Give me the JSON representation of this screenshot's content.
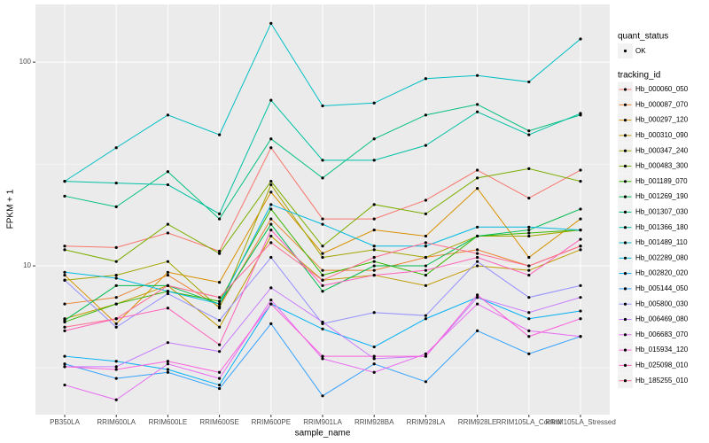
{
  "chart_data": {
    "type": "line",
    "x_label": "sample_name",
    "y_label": "FPKM + 1",
    "categories": [
      "PB350LA",
      "RRIM600LA",
      "RRIM600LE",
      "RRIM600SE",
      "RRIM600PE",
      "RRIM901LA",
      "RRIM928BA",
      "RRIM928LA",
      "RRIM928LE",
      "RRIM105LA_Control",
      "RRIM105LA_Stressed"
    ],
    "log_y": true,
    "ylim": [
      1.86,
      192
    ],
    "yticks": [
      10,
      100
    ],
    "grid": true,
    "point_color": "#000000",
    "point_legend": {
      "title": "quant_status",
      "label": "OK"
    },
    "legend_title": "tracking_id",
    "legend_position": "right",
    "series": [
      {
        "name": "Hb_000060_050",
        "color": "#F8766D",
        "values": [
          12.5,
          12.3,
          14.5,
          11.8,
          38,
          17,
          17,
          21,
          29.5,
          21.5,
          29.5
        ]
      },
      {
        "name": "Hb_000087_070",
        "color": "#EA8331",
        "values": [
          6.5,
          7,
          9,
          6.3,
          17,
          9.5,
          9.5,
          11,
          12,
          10,
          12.5
        ]
      },
      {
        "name": "Hb_000297_120",
        "color": "#D89000",
        "values": [
          9,
          5.2,
          9.3,
          8.3,
          23,
          11.5,
          15,
          14,
          24,
          11,
          17
        ]
      },
      {
        "name": "Hb_000310_090",
        "color": "#C09B00",
        "values": [
          5.5,
          6.5,
          8,
          5,
          14,
          8.5,
          9,
          8,
          10,
          9.5,
          12
        ]
      },
      {
        "name": "Hb_000347_240",
        "color": "#A3A500",
        "values": [
          8.5,
          9,
          10.5,
          6.2,
          25,
          11,
          12,
          11,
          14,
          14,
          15
        ]
      },
      {
        "name": "Hb_000483_300",
        "color": "#7CAE00",
        "values": [
          12,
          10.5,
          16,
          11.5,
          26,
          12.5,
          20,
          18,
          27,
          30,
          26
        ]
      },
      {
        "name": "Hb_001189_070",
        "color": "#39B600",
        "values": [
          5.3,
          6.5,
          7.5,
          6.7,
          19,
          9,
          10.5,
          9,
          14,
          14.5,
          15
        ]
      },
      {
        "name": "Hb_001269_190",
        "color": "#00BB4E",
        "values": [
          5.4,
          8,
          8,
          6.5,
          16,
          7.5,
          10,
          10,
          14,
          15,
          19
        ]
      },
      {
        "name": "Hb_001307_030",
        "color": "#00BF7D",
        "values": [
          22,
          19.5,
          29,
          17,
          42,
          27,
          42,
          55,
          62,
          46,
          55
        ]
      },
      {
        "name": "Hb_001366_180",
        "color": "#00C1A3",
        "values": [
          26,
          25.5,
          25,
          18,
          65,
          33,
          33,
          39,
          57,
          44,
          56
        ]
      },
      {
        "name": "Hb_001489_110",
        "color": "#00BFC4",
        "values": [
          26,
          38,
          55,
          44,
          155,
          61,
          63,
          83,
          86,
          80,
          130
        ]
      },
      {
        "name": "Hb_002289_080",
        "color": "#00BAE0",
        "values": [
          9.3,
          8.7,
          7.5,
          6.5,
          20,
          16,
          12.5,
          12.5,
          15.5,
          15.5,
          15
        ]
      },
      {
        "name": "Hb_002820_020",
        "color": "#00B0F6",
        "values": [
          3.6,
          3.4,
          3.1,
          2.6,
          6.5,
          4.9,
          4,
          5.5,
          7,
          5.5,
          6
        ]
      },
      {
        "name": "Hb_005144_050",
        "color": "#35A2FF",
        "values": [
          3.3,
          2.8,
          3,
          2.5,
          5.2,
          2.3,
          3.3,
          2.7,
          4.8,
          3.7,
          4.5
        ]
      },
      {
        "name": "Hb_005800_030",
        "color": "#9590FF",
        "values": [
          8.5,
          5,
          7.3,
          5.4,
          11,
          5.2,
          5.9,
          5.7,
          10.5,
          7,
          8
        ]
      },
      {
        "name": "Hb_006469_080",
        "color": "#C77CFF",
        "values": [
          3.2,
          3.2,
          4.2,
          3.8,
          7.8,
          5.3,
          3.5,
          3.6,
          7,
          5.9,
          7
        ]
      },
      {
        "name": "Hb_006683_070",
        "color": "#E76BF3",
        "values": [
          2.6,
          2.2,
          3.3,
          2.8,
          6.8,
          3.5,
          3,
          3.7,
          6.5,
          4.8,
          4.5
        ]
      },
      {
        "name": "Hb_015934_120",
        "color": "#FA62DB",
        "values": [
          3.2,
          3.1,
          3.4,
          3,
          6.5,
          3.6,
          3.6,
          3.6,
          7.2,
          4.5,
          5.5
        ]
      },
      {
        "name": "Hb_025098_010",
        "color": "#FF62BC",
        "values": [
          4.8,
          5.5,
          6.2,
          4.1,
          15,
          8,
          9,
          9.5,
          11,
          9,
          13.5
        ]
      },
      {
        "name": "Hb_185255_010",
        "color": "#FF6C91",
        "values": [
          5,
          5.5,
          8,
          7,
          13,
          8.5,
          11,
          13,
          11.5,
          10,
          12.5
        ]
      }
    ]
  }
}
